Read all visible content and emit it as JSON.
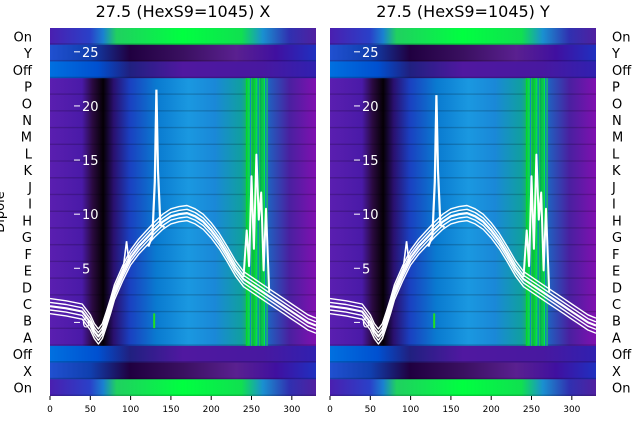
{
  "chart_data": {
    "type": "heatmap",
    "figure_ylabel": "Dipole",
    "row_labels": [
      "On",
      "Y",
      "Off",
      "P",
      "O",
      "N",
      "M",
      "L",
      "K",
      "J",
      "I",
      "H",
      "G",
      "F",
      "E",
      "D",
      "C",
      "B",
      "A",
      "Off",
      "X",
      "On"
    ],
    "band_kinds": [
      "green",
      "dark",
      "blue",
      "purple",
      "purple",
      "purple",
      "purple",
      "purple",
      "purple",
      "purple",
      "purple",
      "purple",
      "purple",
      "purple",
      "purple",
      "purple",
      "purple",
      "purple",
      "purple",
      "blue",
      "dark",
      "green"
    ],
    "xlim": [
      0,
      330
    ],
    "ylim": [
      -6.8,
      27.2
    ],
    "xticks": [
      0,
      50,
      100,
      150,
      200,
      250,
      300
    ],
    "yticks": [
      0,
      5,
      10,
      15,
      20,
      25
    ],
    "curve_color": "#ffffff",
    "panels": [
      {
        "title": "27.5 (HexS9=1045) X",
        "pulse_peak": 21.5,
        "spike_region": [
          243,
          270
        ],
        "trace": {
          "x": [
            0,
            20,
            40,
            50,
            55,
            60,
            65,
            70,
            75,
            80,
            90,
            100,
            110,
            120,
            130,
            140,
            150,
            160,
            170,
            180,
            190,
            200,
            210,
            220,
            230,
            240,
            250,
            260,
            270,
            280,
            290,
            300,
            310,
            320,
            330
          ],
          "y": [
            1.5,
            1.3,
            1.0,
            0.0,
            -0.8,
            -1.3,
            -0.8,
            0.3,
            1.5,
            2.8,
            4.5,
            6.0,
            7.0,
            7.8,
            8.6,
            9.3,
            9.8,
            10.0,
            10.1,
            9.8,
            9.3,
            8.5,
            7.5,
            6.3,
            5.0,
            4.0,
            3.5,
            3.0,
            2.5,
            2.0,
            1.5,
            1.0,
            0.5,
            0.0,
            -0.3
          ]
        }
      },
      {
        "title": "27.5 (HexS9=1045) Y",
        "pulse_peak": 21.0,
        "spike_region": [
          243,
          270
        ],
        "trace": {
          "x": [
            0,
            20,
            40,
            50,
            55,
            60,
            65,
            70,
            75,
            80,
            90,
            100,
            110,
            120,
            130,
            140,
            150,
            160,
            170,
            180,
            190,
            200,
            210,
            220,
            230,
            240,
            250,
            260,
            270,
            280,
            290,
            300,
            310,
            320,
            330
          ],
          "y": [
            1.5,
            1.3,
            1.0,
            0.0,
            -0.8,
            -1.3,
            -0.8,
            0.3,
            1.5,
            2.8,
            4.5,
            6.0,
            7.0,
            7.8,
            8.6,
            9.3,
            9.8,
            10.0,
            10.1,
            9.8,
            9.3,
            8.5,
            7.5,
            6.3,
            5.0,
            4.0,
            3.5,
            3.0,
            2.5,
            2.0,
            1.5,
            1.0,
            0.5,
            0.0,
            -0.3
          ]
        }
      }
    ]
  }
}
